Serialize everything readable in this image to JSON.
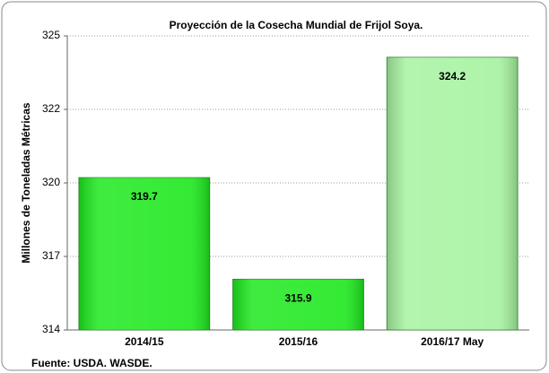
{
  "chart_data": {
    "type": "bar",
    "title": "Proyección de la Cosecha Mundial de Frijol Soya.",
    "y_label": "Millones  de  Toneladas  Métricas",
    "source": "Fuente: USDA. WASDE.",
    "categories": [
      "2014/15",
      "2015/16",
      "2016/17 May"
    ],
    "values": [
      319.7,
      315.9,
      324.2
    ],
    "colors": [
      "#1ee81e",
      "#1ee81e",
      "#a6f2a0"
    ],
    "ylim": [
      314,
      325
    ],
    "yticks": [
      314,
      {
        "value": 316.75,
        "label": "317"
      },
      {
        "value": 319.5,
        "label": "320"
      },
      {
        "value": 322.25,
        "label": "322"
      },
      325
    ],
    "grid": true
  }
}
